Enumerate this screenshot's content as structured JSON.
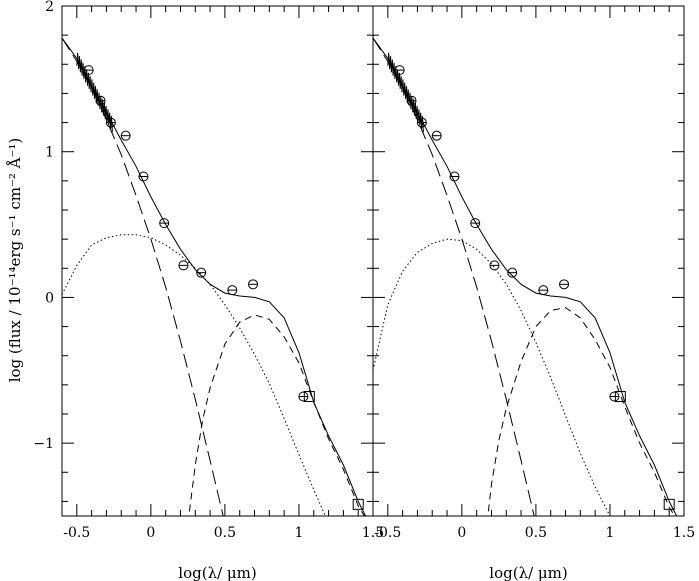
{
  "chart_data": {
    "type": "line",
    "ylabel": "log (flux / 10⁻¹⁴erg s⁻¹ cm⁻² Å⁻¹)",
    "xlim": [
      -0.6,
      1.5
    ],
    "ylim": [
      -1.5,
      2.0
    ],
    "panels": [
      {
        "xlabel": "log(λ/ μm)",
        "x_ticks": [
          "-0.5",
          "0",
          "0.5",
          "1",
          "1.5"
        ],
        "y_ticks": [
          "2",
          "1",
          "0",
          "−1"
        ],
        "series": [
          {
            "style": "solid",
            "x": [
              -0.6,
              -0.5,
              -0.4,
              -0.3,
              -0.2,
              -0.1,
              0.0,
              0.1,
              0.2,
              0.3,
              0.4,
              0.5,
              0.6,
              0.7,
              0.8,
              0.9,
              1.0,
              1.1,
              1.2,
              1.3,
              1.4,
              1.5
            ],
            "y": [
              1.78,
              1.64,
              1.45,
              1.27,
              1.08,
              0.9,
              0.69,
              0.5,
              0.33,
              0.19,
              0.09,
              0.03,
              0.01,
              0.0,
              -0.03,
              -0.14,
              -0.38,
              -0.72,
              -0.95,
              -1.15,
              -1.4,
              -1.6
            ]
          },
          {
            "style": "longdash",
            "x": [
              -0.6,
              -0.5,
              -0.4,
              -0.3,
              -0.2,
              -0.1,
              0.0,
              0.1,
              0.2,
              0.3,
              0.4,
              0.5
            ],
            "y": [
              1.78,
              1.62,
              1.44,
              1.22,
              0.98,
              0.7,
              0.4,
              0.07,
              -0.3,
              -0.7,
              -1.12,
              -1.55
            ]
          },
          {
            "style": "dotted",
            "x": [
              -0.6,
              -0.5,
              -0.4,
              -0.3,
              -0.2,
              -0.1,
              0.0,
              0.1,
              0.2,
              0.3,
              0.4,
              0.5,
              0.6,
              0.7,
              0.8,
              0.9,
              1.0,
              1.1,
              1.2
            ],
            "y": [
              0.02,
              0.22,
              0.36,
              0.41,
              0.43,
              0.43,
              0.41,
              0.36,
              0.29,
              0.2,
              0.09,
              -0.05,
              -0.21,
              -0.39,
              -0.59,
              -0.83,
              -1.08,
              -1.32,
              -1.55
            ]
          },
          {
            "style": "dashed",
            "x": [
              0.25,
              0.3,
              0.35,
              0.4,
              0.5,
              0.6,
              0.7,
              0.8,
              0.9,
              1.0,
              1.1,
              1.2,
              1.3,
              1.4,
              1.5
            ],
            "y": [
              -1.55,
              -1.15,
              -0.84,
              -0.62,
              -0.32,
              -0.17,
              -0.12,
              -0.15,
              -0.27,
              -0.45,
              -0.72,
              -0.97,
              -1.18,
              -1.43,
              -1.6
            ]
          }
        ],
        "points_circle": [
          [
            -0.42,
            1.56
          ],
          [
            -0.34,
            1.35
          ],
          [
            -0.27,
            1.2
          ],
          [
            -0.17,
            1.11
          ],
          [
            -0.05,
            0.83
          ],
          [
            0.09,
            0.51
          ],
          [
            0.22,
            0.22
          ],
          [
            0.34,
            0.17
          ],
          [
            0.55,
            0.05
          ],
          [
            0.69,
            0.09
          ],
          [
            1.03,
            -0.68
          ]
        ],
        "points_square": [
          [
            1.07,
            -0.68
          ],
          [
            1.4,
            -1.42
          ]
        ]
      },
      {
        "xlabel": "log(λ/ μm)",
        "x_ticks": [
          "-0.5",
          "0",
          "0.5",
          "1",
          "1.5"
        ],
        "y_ticks": [],
        "series": [
          {
            "style": "solid",
            "x": [
              -0.6,
              -0.5,
              -0.4,
              -0.3,
              -0.2,
              -0.1,
              0.0,
              0.1,
              0.2,
              0.3,
              0.4,
              0.5,
              0.6,
              0.7,
              0.8,
              0.9,
              1.0,
              1.1,
              1.2,
              1.3,
              1.4,
              1.5
            ],
            "y": [
              1.78,
              1.64,
              1.45,
              1.27,
              1.08,
              0.9,
              0.69,
              0.5,
              0.33,
              0.19,
              0.09,
              0.03,
              0.01,
              0.0,
              -0.03,
              -0.14,
              -0.38,
              -0.72,
              -0.95,
              -1.15,
              -1.4,
              -1.6
            ]
          },
          {
            "style": "longdash",
            "x": [
              -0.6,
              -0.5,
              -0.4,
              -0.3,
              -0.2,
              -0.1,
              0.0,
              0.1,
              0.2,
              0.3,
              0.4,
              0.5
            ],
            "y": [
              1.78,
              1.62,
              1.44,
              1.22,
              0.98,
              0.7,
              0.4,
              0.07,
              -0.3,
              -0.7,
              -1.12,
              -1.55
            ]
          },
          {
            "style": "dotted",
            "x": [
              -0.6,
              -0.5,
              -0.4,
              -0.3,
              -0.2,
              -0.1,
              0.0,
              0.1,
              0.2,
              0.3,
              0.4,
              0.5,
              0.6,
              0.7,
              0.8,
              0.9,
              1.0,
              1.1
            ],
            "y": [
              -0.5,
              -0.05,
              0.18,
              0.31,
              0.37,
              0.4,
              0.39,
              0.33,
              0.23,
              0.09,
              -0.09,
              -0.31,
              -0.55,
              -0.81,
              -1.07,
              -1.3,
              -1.5,
              -1.62
            ]
          },
          {
            "style": "dashed",
            "x": [
              0.17,
              0.2,
              0.25,
              0.3,
              0.4,
              0.5,
              0.6,
              0.7,
              0.8,
              0.9,
              1.0,
              1.1,
              1.2,
              1.3,
              1.4,
              1.5
            ],
            "y": [
              -1.55,
              -1.28,
              -0.98,
              -0.76,
              -0.44,
              -0.2,
              -0.09,
              -0.07,
              -0.14,
              -0.29,
              -0.48,
              -0.75,
              -1.0,
              -1.2,
              -1.44,
              -1.6
            ]
          }
        ],
        "points_circle": [
          [
            -0.42,
            1.56
          ],
          [
            -0.34,
            1.35
          ],
          [
            -0.27,
            1.2
          ],
          [
            -0.17,
            1.11
          ],
          [
            -0.05,
            0.83
          ],
          [
            0.09,
            0.51
          ],
          [
            0.22,
            0.22
          ],
          [
            0.34,
            0.17
          ],
          [
            0.55,
            0.05
          ],
          [
            0.69,
            0.09
          ],
          [
            1.03,
            -0.68
          ]
        ],
        "points_square": [
          [
            1.07,
            -0.68
          ],
          [
            1.4,
            -1.42
          ]
        ]
      }
    ]
  }
}
